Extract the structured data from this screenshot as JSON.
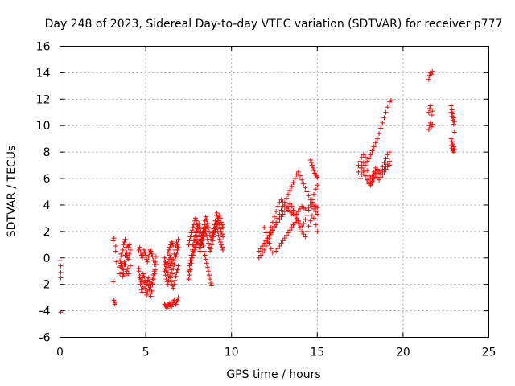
{
  "chart_data": {
    "type": "scatter",
    "title": "Day 248 of 2023, Sidereal Day-to-day VTEC variation (SDTVAR) for receiver p777",
    "xlabel": "GPS time / hours",
    "ylabel": "SDTVAR / TECUs",
    "xlim": [
      0,
      25
    ],
    "ylim": [
      -6,
      16
    ],
    "xticks": [
      "0",
      "5",
      "10",
      "15",
      "20",
      "25"
    ],
    "yticks": [
      "-6",
      "-4",
      "-2",
      "0",
      "2",
      "4",
      "6",
      "8",
      "10",
      "12",
      "14",
      "16"
    ],
    "grid": true,
    "marker": "+",
    "color": "#ff0000",
    "series": [
      {
        "x": [
          0.0,
          0.05,
          0.05,
          0.05,
          0.05,
          3.1,
          3.1,
          3.15,
          3.15,
          3.2,
          3.2,
          3.25,
          3.25,
          3.3,
          3.5,
          3.55,
          3.6,
          3.65,
          3.7,
          3.75,
          3.8,
          3.85,
          3.9,
          3.95,
          4.0,
          4.05,
          4.1,
          3.5,
          3.55,
          3.6,
          3.65,
          3.7,
          3.75,
          3.8,
          3.85,
          3.9,
          3.95,
          4.0,
          4.05,
          4.1,
          3.5,
          3.55,
          3.6,
          3.65,
          3.7,
          3.75,
          3.8,
          3.85,
          3.9,
          3.95,
          4.0,
          4.6,
          4.65,
          4.7,
          4.75,
          4.8,
          4.85,
          4.9,
          4.95,
          5.0,
          5.05,
          5.1,
          5.15,
          5.2,
          5.25,
          5.3,
          5.35,
          5.4,
          5.45,
          5.5,
          5.55,
          5.6,
          4.6,
          4.65,
          4.7,
          4.75,
          4.8,
          4.85,
          4.9,
          4.95,
          5.0,
          5.05,
          5.1,
          5.15,
          5.2,
          5.25,
          5.3,
          5.35,
          5.4,
          5.45,
          5.5,
          4.6,
          4.65,
          4.7,
          4.75,
          4.8,
          4.85,
          4.9,
          4.95,
          5.0,
          5.05,
          5.1,
          5.15,
          5.2,
          5.25,
          5.3,
          5.35,
          5.4,
          5.45,
          5.5,
          5.55,
          5.6,
          6.1,
          6.15,
          6.2,
          6.25,
          6.3,
          6.35,
          6.4,
          6.45,
          6.5,
          6.55,
          6.6,
          6.65,
          6.7,
          6.75,
          6.8,
          6.85,
          6.9,
          6.1,
          6.15,
          6.2,
          6.25,
          6.3,
          6.35,
          6.4,
          6.45,
          6.5,
          6.55,
          6.6,
          6.65,
          6.7,
          6.75,
          6.8,
          6.85,
          6.9,
          6.1,
          6.15,
          6.2,
          6.25,
          6.3,
          6.35,
          6.4,
          6.45,
          6.5,
          6.55,
          6.6,
          6.65,
          6.7,
          6.75,
          6.8,
          6.85,
          6.9,
          6.1,
          6.15,
          6.2,
          6.25,
          6.3,
          6.35,
          6.4,
          6.45,
          6.5,
          6.55,
          6.6,
          6.65,
          6.7,
          6.75,
          6.8,
          6.85,
          6.9,
          6.3,
          6.35,
          6.4,
          6.45,
          6.5,
          6.55,
          6.6,
          7.5,
          7.55,
          7.6,
          7.65,
          7.7,
          7.75,
          7.8,
          7.85,
          7.9,
          7.95,
          8.0,
          8.05,
          8.1,
          8.15,
          8.2,
          8.25,
          8.3,
          8.35,
          8.4,
          8.45,
          8.5,
          8.55,
          8.6,
          8.65,
          8.7,
          8.75,
          8.8,
          8.85,
          8.9,
          8.95,
          9.0,
          9.05,
          9.1,
          9.15,
          9.2,
          9.25,
          9.3,
          9.35,
          9.4,
          9.45,
          9.5,
          7.5,
          7.55,
          7.6,
          7.65,
          7.7,
          7.75,
          7.8,
          7.85,
          7.9,
          7.95,
          8.0,
          8.05,
          8.1,
          8.15,
          8.2,
          8.25,
          8.3,
          8.35,
          8.4,
          8.45,
          8.5,
          8.55,
          8.6,
          8.65,
          8.7,
          8.75,
          8.8,
          8.85,
          8.9,
          8.95,
          9.0,
          9.05,
          9.1,
          9.15,
          9.2,
          9.25,
          9.3,
          9.35,
          9.4,
          9.45,
          9.5,
          7.5,
          7.55,
          7.6,
          7.65,
          7.7,
          7.75,
          7.8,
          7.85,
          7.9,
          7.95,
          8.0,
          8.05,
          8.1,
          8.15,
          8.2,
          8.25,
          8.3,
          8.35,
          8.4,
          8.45,
          8.5,
          8.55,
          8.6,
          8.65,
          8.7,
          8.75,
          8.8,
          8.85,
          8.9,
          8.95,
          9.0,
          9.05,
          9.1,
          9.15,
          9.2,
          9.25,
          9.3,
          9.35,
          9.4,
          9.45,
          9.5,
          7.6,
          7.65,
          7.7,
          7.75,
          7.8,
          7.85,
          7.9,
          7.95,
          8.0,
          8.2,
          8.25,
          8.3,
          8.35,
          8.4,
          8.45,
          8.5,
          8.55,
          8.6,
          11.6,
          11.7,
          11.8,
          11.9,
          12.0,
          12.1,
          12.2,
          12.3,
          12.4,
          12.5,
          12.6,
          12.7,
          12.8,
          12.9,
          13.0,
          13.1,
          13.2,
          13.3,
          13.4,
          13.5,
          13.6,
          13.7,
          13.8,
          13.9,
          14.0,
          14.1,
          14.2,
          14.3,
          14.4,
          14.5,
          14.6,
          14.7,
          14.8,
          14.9,
          15.0,
          11.6,
          11.7,
          11.8,
          11.9,
          12.0,
          12.1,
          12.2,
          12.3,
          12.4,
          12.5,
          12.6,
          12.7,
          12.8,
          12.9,
          13.0,
          13.1,
          13.2,
          13.3,
          13.4,
          13.5,
          13.6,
          13.7,
          13.8,
          13.9,
          14.0,
          14.1,
          14.2,
          14.3,
          14.4,
          14.5,
          14.6,
          14.7,
          14.8,
          14.9,
          15.0,
          12.1,
          12.2,
          12.3,
          12.4,
          12.5,
          12.6,
          12.7,
          12.8,
          12.9,
          13.0,
          13.1,
          13.2,
          13.3,
          13.4,
          13.5,
          13.6,
          13.7,
          13.8,
          13.9,
          14.0,
          14.1,
          14.2,
          14.3,
          14.4,
          14.5,
          14.6,
          14.7,
          14.8,
          14.9,
          15.0,
          12.6,
          12.7,
          12.8,
          12.9,
          13.0,
          13.1,
          13.2,
          13.3,
          13.4,
          13.5,
          13.6,
          13.7,
          13.8,
          13.9,
          14.0,
          14.1,
          14.2,
          14.3,
          14.4,
          14.5,
          14.6,
          14.7,
          14.8,
          14.9,
          15.0,
          14.6,
          14.65,
          14.7,
          14.75,
          14.8,
          14.85,
          14.9,
          14.95,
          15.0,
          11.9,
          12.0,
          12.1,
          12.2,
          12.3,
          12.4,
          17.4,
          17.5,
          17.6,
          17.7,
          17.8,
          17.9,
          18.0,
          18.1,
          18.2,
          18.3,
          18.4,
          18.5,
          18.6,
          18.7,
          18.8,
          18.9,
          19.0,
          19.1,
          19.2,
          19.3,
          17.4,
          17.5,
          17.6,
          17.7,
          17.8,
          17.9,
          18.0,
          18.1,
          18.2,
          18.3,
          18.4,
          18.5,
          18.6,
          18.7,
          18.8,
          18.9,
          19.0,
          19.1,
          19.2,
          17.5,
          17.6,
          17.7,
          17.8,
          17.9,
          18.0,
          18.1,
          18.2,
          18.3,
          18.4,
          18.5,
          18.6,
          18.7,
          18.8,
          18.9,
          19.0,
          19.1,
          19.2,
          17.6,
          17.7,
          17.8,
          17.9,
          18.0,
          18.1,
          18.2,
          18.3,
          18.4,
          18.5,
          18.6,
          18.7,
          18.8,
          18.9,
          19.0,
          19.1,
          19.2,
          21.5,
          21.55,
          21.6,
          21.65,
          21.7,
          21.5,
          21.55,
          21.6,
          21.65,
          21.7,
          21.5,
          21.55,
          21.6,
          21.65,
          21.7,
          22.8,
          22.85,
          22.9,
          22.95,
          23.0,
          22.8,
          22.85,
          22.9,
          22.95,
          23.0,
          22.8,
          22.85,
          22.9,
          22.95,
          23.0,
          22.8,
          22.85,
          22.9,
          22.95,
          23.0
        ],
        "y": [
          -0.2,
          -0.6,
          -1.1,
          -1.5,
          -4.1,
          1.3,
          -1.8,
          1.5,
          -3.2,
          -3.4,
          -3.5,
          0.9,
          0.5,
          -0.3,
          -1.2,
          -0.6,
          0.1,
          0.6,
          1.0,
          1.2,
          1.4,
          0.8,
          0.4,
          0.9,
          0.8,
          1.0,
          0.6,
          -0.2,
          0.3,
          -0.4,
          -0.8,
          -1.2,
          -0.5,
          0.2,
          0.4,
          0.2,
          0.0,
          -0.1,
          0.3,
          -0.6,
          -0.7,
          -0.4,
          -1.1,
          -1.4,
          -0.9,
          -0.3,
          -0.5,
          -1.3,
          -1.0,
          -0.8,
          -1.2,
          -0.8,
          -1.5,
          -2.0,
          -2.4,
          -2.6,
          -2.2,
          -1.9,
          -2.3,
          -2.6,
          -2.8,
          -2.5,
          -2.1,
          -2.4,
          -2.7,
          -2.9,
          -2.5,
          -2.0,
          -1.6,
          -1.2,
          -0.9,
          -0.5,
          -1.0,
          -1.3,
          -1.6,
          -1.8,
          -1.5,
          -1.2,
          -1.4,
          -1.7,
          -1.9,
          -2.0,
          -1.7,
          -1.5,
          -1.8,
          -2.0,
          -2.2,
          -1.9,
          -1.6,
          -1.3,
          -1.0,
          0.6,
          0.8,
          0.4,
          0.2,
          0.0,
          0.3,
          0.6,
          0.4,
          0.2,
          -0.1,
          -0.3,
          0.1,
          0.4,
          0.6,
          0.5,
          0.3,
          0.1,
          -0.2,
          -0.5,
          -0.3,
          0.1,
          -3.5,
          -3.6,
          -3.7,
          -3.8,
          -3.6,
          -3.5,
          -3.4,
          -3.6,
          -3.7,
          -3.5,
          -3.3,
          -3.2,
          -3.4,
          -3.5,
          -3.3,
          -3.2,
          -3.0,
          -0.5,
          -0.8,
          -1.0,
          -1.3,
          -1.1,
          -0.7,
          -0.4,
          -0.6,
          -0.9,
          -1.2,
          -0.8,
          -0.5,
          -0.2,
          0.1,
          0.3,
          0.6,
          0.8,
          -1.0,
          -1.3,
          -1.6,
          -1.8,
          -2.0,
          -1.7,
          -1.4,
          -1.5,
          -1.8,
          -2.1,
          -2.3,
          -2.0,
          -1.7,
          -1.4,
          -1.1,
          -0.9,
          -0.6,
          0.0,
          -0.3,
          -0.5,
          -0.7,
          -0.4,
          -0.1,
          0.2,
          0.0,
          -0.2,
          -0.4,
          -0.1,
          0.3,
          0.6,
          0.9,
          1.2,
          1.0,
          1.4,
          0.4,
          0.6,
          0.8,
          1.0,
          1.2,
          1.1,
          0.9,
          -1.6,
          -1.3,
          -0.9,
          -0.4,
          0.0,
          0.5,
          0.9,
          1.3,
          1.7,
          2.0,
          2.2,
          2.4,
          2.6,
          2.3,
          2.0,
          1.7,
          1.3,
          0.9,
          0.5,
          0.2,
          -0.1,
          -0.4,
          -0.7,
          -1.0,
          -1.3,
          -1.6,
          -1.9,
          -2.1,
          1.6,
          1.8,
          2.0,
          2.2,
          2.4,
          2.6,
          2.8,
          3.0,
          3.2,
          3.0,
          2.7,
          2.5,
          2.3,
          1.0,
          1.3,
          1.6,
          1.9,
          2.1,
          2.3,
          2.5,
          2.8,
          3.0,
          2.8,
          2.5,
          2.2,
          1.9,
          1.6,
          1.3,
          1.6,
          1.9,
          2.2,
          2.5,
          2.8,
          3.1,
          2.9,
          2.6,
          2.3,
          2.0,
          1.7,
          1.4,
          1.6,
          1.9,
          2.2,
          2.5,
          2.8,
          3.2,
          3.4,
          3.1,
          2.8,
          2.5,
          2.2,
          2.0,
          1.8,
          1.6,
          -1.0,
          -0.6,
          -0.2,
          0.2,
          0.6,
          1.0,
          1.3,
          1.6,
          1.9,
          1.7,
          1.4,
          1.1,
          0.8,
          0.5,
          0.8,
          1.1,
          1.4,
          1.7,
          2.0,
          2.3,
          2.0,
          1.7,
          1.4,
          1.1,
          0.8,
          0.5,
          0.7,
          1.0,
          1.3,
          1.6,
          1.9,
          2.2,
          2.5,
          2.3,
          2.0,
          1.7,
          1.4,
          1.2,
          1.0,
          0.8,
          0.6,
          -0.4,
          -0.2,
          0.0,
          0.2,
          0.4,
          0.6,
          0.8,
          1.0,
          1.2,
          1.0,
          1.2,
          1.4,
          1.6,
          1.8,
          2.0,
          2.2,
          2.4,
          2.6,
          0.0,
          0.2,
          0.4,
          0.6,
          0.9,
          1.2,
          1.5,
          1.8,
          2.1,
          2.4,
          2.7,
          3.0,
          3.3,
          3.6,
          3.9,
          4.2,
          4.5,
          4.8,
          5.1,
          5.4,
          5.7,
          6.0,
          6.3,
          6.5,
          6.2,
          5.9,
          5.6,
          5.3,
          5.0,
          4.7,
          4.4,
          4.2,
          4.0,
          3.9,
          3.8,
          0.5,
          0.7,
          0.9,
          1.1,
          1.3,
          1.5,
          1.7,
          1.9,
          2.1,
          2.3,
          2.5,
          2.7,
          2.9,
          3.1,
          3.3,
          3.5,
          3.7,
          3.9,
          4.1,
          3.9,
          3.6,
          3.3,
          3.0,
          2.8,
          2.6,
          2.4,
          2.6,
          2.9,
          3.2,
          3.6,
          4.0,
          4.4,
          4.8,
          5.2,
          5.5,
          1.5,
          1.9,
          2.3,
          2.7,
          3.1,
          3.5,
          3.9,
          4.2,
          4.4,
          4.2,
          4.0,
          3.8,
          3.6,
          3.5,
          3.4,
          3.3,
          3.2,
          3.3,
          3.5,
          3.7,
          3.9,
          3.8,
          3.7,
          3.6,
          3.8,
          4.0,
          3.9,
          3.7,
          3.5,
          3.3,
          0.5,
          0.7,
          0.9,
          1.1,
          1.3,
          1.5,
          1.7,
          1.9,
          2.1,
          2.3,
          2.5,
          2.7,
          2.9,
          2.6,
          2.3,
          2.0,
          1.8,
          1.6,
          2.0,
          2.4,
          2.8,
          3.2,
          3.0,
          2.5,
          2.0,
          7.4,
          7.2,
          7.0,
          6.8,
          6.6,
          6.4,
          6.3,
          6.2,
          6.1,
          2.3,
          1.9,
          1.5,
          1.1,
          0.7,
          0.4,
          7.0,
          7.3,
          7.6,
          7.8,
          7.6,
          7.3,
          7.5,
          7.8,
          8.1,
          8.4,
          8.7,
          9.0,
          9.4,
          9.8,
          10.2,
          10.6,
          11.0,
          11.4,
          11.8,
          11.9,
          6.5,
          6.8,
          7.0,
          7.2,
          7.0,
          6.6,
          6.2,
          6.0,
          6.2,
          6.5,
          6.8,
          6.6,
          6.4,
          6.6,
          6.9,
          7.2,
          7.5,
          7.8,
          8.0,
          6.0,
          6.3,
          6.6,
          6.2,
          5.9,
          5.7,
          5.6,
          5.8,
          6.1,
          6.4,
          6.7,
          6.5,
          6.3,
          6.5,
          6.7,
          6.9,
          7.1,
          7.3,
          6.8,
          6.5,
          6.2,
          5.9,
          5.6,
          5.5,
          5.7,
          6.0,
          6.3,
          6.1,
          5.9,
          6.1,
          6.3,
          6.5,
          6.7,
          6.9,
          7.0,
          13.5,
          13.8,
          14.0,
          13.9,
          14.1,
          11.0,
          11.3,
          11.5,
          10.8,
          11.1,
          9.7,
          10.0,
          10.2,
          9.9,
          10.1,
          11.5,
          11.2,
          10.9,
          10.6,
          10.3,
          11.0,
          10.7,
          10.4,
          10.1,
          9.5,
          9.0,
          8.8,
          8.6,
          8.4,
          8.2,
          8.5,
          8.3,
          8.1,
          8.0,
          8.2
        ]
      }
    ]
  }
}
